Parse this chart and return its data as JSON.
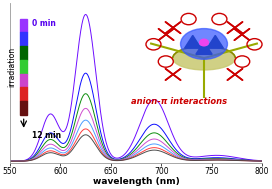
{
  "xlim": [
    550,
    800
  ],
  "xlabel": "wavelength (nm)",
  "curves": [
    {
      "color": "#6600ff",
      "scale": 1.0
    },
    {
      "color": "#0000ff",
      "scale": 0.6
    },
    {
      "color": "#008800",
      "scale": 0.46
    },
    {
      "color": "#cc44cc",
      "scale": 0.36
    },
    {
      "color": "#4499ff",
      "scale": 0.28
    },
    {
      "color": "#ff3333",
      "scale": 0.22
    },
    {
      "color": "#444444",
      "scale": 0.18
    }
  ],
  "bar_colors": [
    "#9933ff",
    "#3333ff",
    "#006600",
    "#33cc33",
    "#cc44cc",
    "#dd2222",
    "#661111"
  ],
  "irradiation_label": "irradiation",
  "min_label": "0 min",
  "max_label": "12 min",
  "min_label_color": "#5500ee",
  "anion_pi_text": "anion-π interactions",
  "anion_pi_color": "#cc0000",
  "tick_positions": [
    550,
    600,
    650,
    700,
    750,
    800
  ],
  "tick_labels": [
    "550",
    "600",
    "650",
    "700",
    "750",
    "800"
  ]
}
